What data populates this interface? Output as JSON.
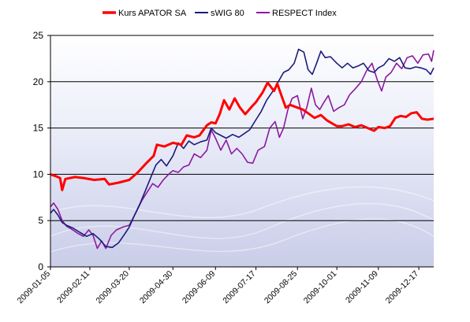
{
  "chart_data": {
    "type": "line",
    "title": "",
    "xlabel": "",
    "ylabel": "",
    "ylim": [
      0,
      25
    ],
    "yticks": [
      0,
      5,
      10,
      15,
      20,
      25
    ],
    "xlim": [
      "2009-01-05",
      "2009-12-31"
    ],
    "xticks": [
      "2009-01-05",
      "2009-02-11",
      "2009-03-20",
      "2009-04-30",
      "2009-06-09",
      "2009-07-17",
      "2009-08-25",
      "2009-10-01",
      "2009-11-09",
      "2009-12-17"
    ],
    "grid": "horizontal",
    "legend_position": "top",
    "series": [
      {
        "name": "Kurs APATOR SA",
        "color": "#ff0000",
        "points": [
          [
            "2009-01-05",
            10.0
          ],
          [
            "2009-01-10",
            9.8
          ],
          [
            "2009-01-14",
            9.6
          ],
          [
            "2009-01-16",
            8.3
          ],
          [
            "2009-01-19",
            9.5
          ],
          [
            "2009-01-28",
            9.7
          ],
          [
            "2009-02-05",
            9.6
          ],
          [
            "2009-02-15",
            9.4
          ],
          [
            "2009-02-25",
            9.5
          ],
          [
            "2009-03-01",
            8.9
          ],
          [
            "2009-03-10",
            9.1
          ],
          [
            "2009-03-20",
            9.4
          ],
          [
            "2009-03-28",
            10.2
          ],
          [
            "2009-04-05",
            11.2
          ],
          [
            "2009-04-12",
            12.0
          ],
          [
            "2009-04-15",
            13.2
          ],
          [
            "2009-04-22",
            13.0
          ],
          [
            "2009-04-30",
            13.4
          ],
          [
            "2009-05-08",
            13.2
          ],
          [
            "2009-05-13",
            14.2
          ],
          [
            "2009-05-20",
            14.0
          ],
          [
            "2009-05-25",
            14.2
          ],
          [
            "2009-06-01",
            15.3
          ],
          [
            "2009-06-05",
            15.6
          ],
          [
            "2009-06-09",
            15.5
          ],
          [
            "2009-06-13",
            16.5
          ],
          [
            "2009-06-17",
            18.0
          ],
          [
            "2009-06-22",
            17.0
          ],
          [
            "2009-06-27",
            18.2
          ],
          [
            "2009-07-02",
            17.2
          ],
          [
            "2009-07-07",
            16.5
          ],
          [
            "2009-07-13",
            17.3
          ],
          [
            "2009-07-17",
            17.8
          ],
          [
            "2009-07-23",
            18.8
          ],
          [
            "2009-07-28",
            19.9
          ],
          [
            "2009-08-03",
            19.0
          ],
          [
            "2009-08-06",
            19.8
          ],
          [
            "2009-08-10",
            18.5
          ],
          [
            "2009-08-14",
            17.2
          ],
          [
            "2009-08-18",
            17.5
          ],
          [
            "2009-08-25",
            17.2
          ],
          [
            "2009-08-30",
            17.0
          ],
          [
            "2009-09-04",
            16.6
          ],
          [
            "2009-09-10",
            16.1
          ],
          [
            "2009-09-16",
            16.4
          ],
          [
            "2009-09-22",
            15.8
          ],
          [
            "2009-10-01",
            15.2
          ],
          [
            "2009-10-06",
            15.2
          ],
          [
            "2009-10-12",
            15.4
          ],
          [
            "2009-10-18",
            15.1
          ],
          [
            "2009-10-24",
            15.3
          ],
          [
            "2009-10-30",
            15.0
          ],
          [
            "2009-11-05",
            14.7
          ],
          [
            "2009-11-09",
            15.1
          ],
          [
            "2009-11-15",
            15.0
          ],
          [
            "2009-11-20",
            15.2
          ],
          [
            "2009-11-25",
            16.1
          ],
          [
            "2009-11-30",
            16.3
          ],
          [
            "2009-12-05",
            16.2
          ],
          [
            "2009-12-10",
            16.6
          ],
          [
            "2009-12-15",
            16.7
          ],
          [
            "2009-12-20",
            16.0
          ],
          [
            "2009-12-25",
            15.9
          ],
          [
            "2009-12-31",
            16.0
          ]
        ]
      },
      {
        "name": "sWIG 80",
        "color": "#1b1b7a",
        "points": [
          [
            "2009-01-05",
            5.8
          ],
          [
            "2009-01-08",
            6.2
          ],
          [
            "2009-01-12",
            5.6
          ],
          [
            "2009-01-16",
            4.8
          ],
          [
            "2009-01-20",
            4.5
          ],
          [
            "2009-01-26",
            4.2
          ],
          [
            "2009-02-02",
            3.7
          ],
          [
            "2009-02-08",
            3.3
          ],
          [
            "2009-02-14",
            3.6
          ],
          [
            "2009-02-20",
            3.0
          ],
          [
            "2009-02-26",
            2.2
          ],
          [
            "2009-03-04",
            2.1
          ],
          [
            "2009-03-10",
            2.6
          ],
          [
            "2009-03-16",
            3.6
          ],
          [
            "2009-03-20",
            4.3
          ],
          [
            "2009-03-25",
            5.6
          ],
          [
            "2009-03-30",
            6.8
          ],
          [
            "2009-04-04",
            8.2
          ],
          [
            "2009-04-09",
            9.6
          ],
          [
            "2009-04-14",
            11.0
          ],
          [
            "2009-04-19",
            11.6
          ],
          [
            "2009-04-24",
            10.9
          ],
          [
            "2009-04-30",
            12.0
          ],
          [
            "2009-05-05",
            13.4
          ],
          [
            "2009-05-10",
            12.8
          ],
          [
            "2009-05-15",
            13.6
          ],
          [
            "2009-05-20",
            13.2
          ],
          [
            "2009-05-26",
            13.5
          ],
          [
            "2009-06-01",
            13.7
          ],
          [
            "2009-06-05",
            15.0
          ],
          [
            "2009-06-09",
            14.5
          ],
          [
            "2009-06-14",
            14.2
          ],
          [
            "2009-06-19",
            13.9
          ],
          [
            "2009-06-25",
            14.3
          ],
          [
            "2009-07-01",
            14.0
          ],
          [
            "2009-07-06",
            14.4
          ],
          [
            "2009-07-11",
            14.8
          ],
          [
            "2009-07-17",
            15.9
          ],
          [
            "2009-07-22",
            16.8
          ],
          [
            "2009-07-27",
            18.0
          ],
          [
            "2009-08-02",
            19.0
          ],
          [
            "2009-08-07",
            20.0
          ],
          [
            "2009-08-12",
            21.0
          ],
          [
            "2009-08-17",
            21.3
          ],
          [
            "2009-08-22",
            22.0
          ],
          [
            "2009-08-26",
            23.5
          ],
          [
            "2009-08-31",
            23.2
          ],
          [
            "2009-09-04",
            21.3
          ],
          [
            "2009-09-08",
            20.8
          ],
          [
            "2009-09-12",
            22.0
          ],
          [
            "2009-09-16",
            23.3
          ],
          [
            "2009-09-20",
            22.6
          ],
          [
            "2009-09-25",
            22.7
          ],
          [
            "2009-10-01",
            22.0
          ],
          [
            "2009-10-06",
            21.5
          ],
          [
            "2009-10-11",
            22.0
          ],
          [
            "2009-10-16",
            21.5
          ],
          [
            "2009-10-21",
            21.7
          ],
          [
            "2009-10-26",
            22.0
          ],
          [
            "2009-10-31",
            21.2
          ],
          [
            "2009-11-05",
            21.0
          ],
          [
            "2009-11-09",
            21.5
          ],
          [
            "2009-11-14",
            21.8
          ],
          [
            "2009-11-19",
            22.5
          ],
          [
            "2009-11-24",
            22.2
          ],
          [
            "2009-11-29",
            22.6
          ],
          [
            "2009-12-04",
            21.5
          ],
          [
            "2009-12-09",
            21.4
          ],
          [
            "2009-12-14",
            21.6
          ],
          [
            "2009-12-19",
            21.5
          ],
          [
            "2009-12-24",
            21.3
          ],
          [
            "2009-12-28",
            20.8
          ],
          [
            "2009-12-31",
            21.5
          ]
        ]
      },
      {
        "name": "RESPECT Index",
        "color": "#8b1a9e",
        "points": [
          [
            "2009-01-05",
            6.5
          ],
          [
            "2009-01-08",
            6.9
          ],
          [
            "2009-01-12",
            6.2
          ],
          [
            "2009-01-16",
            5.0
          ],
          [
            "2009-01-20",
            4.4
          ],
          [
            "2009-01-26",
            4.0
          ],
          [
            "2009-01-31",
            3.6
          ],
          [
            "2009-02-05",
            3.3
          ],
          [
            "2009-02-10",
            4.0
          ],
          [
            "2009-02-14",
            3.4
          ],
          [
            "2009-02-18",
            2.0
          ],
          [
            "2009-02-22",
            2.8
          ],
          [
            "2009-02-26",
            2.0
          ],
          [
            "2009-03-03",
            3.4
          ],
          [
            "2009-03-08",
            4.0
          ],
          [
            "2009-03-14",
            4.3
          ],
          [
            "2009-03-20",
            4.5
          ],
          [
            "2009-03-26",
            5.8
          ],
          [
            "2009-04-01",
            7.2
          ],
          [
            "2009-04-06",
            8.1
          ],
          [
            "2009-04-11",
            9.0
          ],
          [
            "2009-04-16",
            8.6
          ],
          [
            "2009-04-21",
            9.4
          ],
          [
            "2009-04-26",
            10.0
          ],
          [
            "2009-04-30",
            10.4
          ],
          [
            "2009-05-05",
            10.2
          ],
          [
            "2009-05-10",
            10.8
          ],
          [
            "2009-05-15",
            11.0
          ],
          [
            "2009-05-20",
            12.2
          ],
          [
            "2009-05-26",
            11.8
          ],
          [
            "2009-06-01",
            12.6
          ],
          [
            "2009-06-05",
            14.8
          ],
          [
            "2009-06-09",
            13.9
          ],
          [
            "2009-06-14",
            12.6
          ],
          [
            "2009-06-19",
            13.7
          ],
          [
            "2009-06-24",
            12.2
          ],
          [
            "2009-06-29",
            12.8
          ],
          [
            "2009-07-04",
            12.2
          ],
          [
            "2009-07-09",
            11.3
          ],
          [
            "2009-07-14",
            11.2
          ],
          [
            "2009-07-19",
            12.6
          ],
          [
            "2009-07-25",
            13.0
          ],
          [
            "2009-07-30",
            15.0
          ],
          [
            "2009-08-04",
            15.7
          ],
          [
            "2009-08-08",
            14.0
          ],
          [
            "2009-08-12",
            15.0
          ],
          [
            "2009-08-16",
            17.0
          ],
          [
            "2009-08-20",
            18.2
          ],
          [
            "2009-08-25",
            18.5
          ],
          [
            "2009-08-30",
            16.0
          ],
          [
            "2009-09-03",
            17.3
          ],
          [
            "2009-09-07",
            19.3
          ],
          [
            "2009-09-11",
            17.5
          ],
          [
            "2009-09-15",
            17.0
          ],
          [
            "2009-09-19",
            17.8
          ],
          [
            "2009-09-23",
            18.5
          ],
          [
            "2009-09-28",
            16.8
          ],
          [
            "2009-10-03",
            17.2
          ],
          [
            "2009-10-08",
            17.5
          ],
          [
            "2009-10-13",
            18.6
          ],
          [
            "2009-10-18",
            19.2
          ],
          [
            "2009-10-24",
            20.0
          ],
          [
            "2009-10-29",
            21.2
          ],
          [
            "2009-11-03",
            22.0
          ],
          [
            "2009-11-08",
            20.2
          ],
          [
            "2009-11-12",
            19.0
          ],
          [
            "2009-11-16",
            20.5
          ],
          [
            "2009-11-21",
            21.0
          ],
          [
            "2009-11-26",
            22.0
          ],
          [
            "2009-12-01",
            21.4
          ],
          [
            "2009-12-06",
            22.6
          ],
          [
            "2009-12-11",
            22.8
          ],
          [
            "2009-12-16",
            22.0
          ],
          [
            "2009-12-21",
            22.9
          ],
          [
            "2009-12-26",
            23.0
          ],
          [
            "2009-12-29",
            22.2
          ],
          [
            "2009-12-31",
            23.4
          ]
        ]
      }
    ]
  }
}
